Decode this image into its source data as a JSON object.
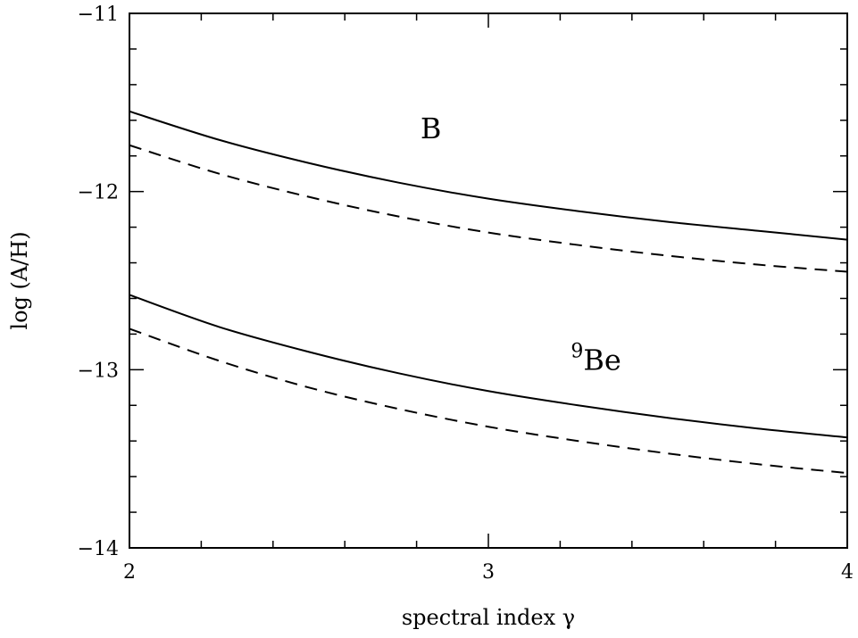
{
  "chart_data": {
    "type": "line",
    "xlabel": "spectral index γ",
    "ylabel": "log (A/H)",
    "xlim": [
      2,
      4
    ],
    "ylim": [
      -14,
      -11
    ],
    "x_ticks": [
      2,
      3,
      4
    ],
    "x_tick_labels": [
      "2",
      "3",
      "4"
    ],
    "x_minor_step": 0.2,
    "y_ticks": [
      -14,
      -13,
      -12,
      -11
    ],
    "y_tick_labels": [
      "−14",
      "−13",
      "−12",
      "−11"
    ],
    "y_minor_step": 0.2,
    "grid": false,
    "legend": "none",
    "x": [
      2.0,
      2.25,
      2.5,
      2.75,
      3.0,
      3.25,
      3.5,
      3.75,
      4.0
    ],
    "series": [
      {
        "label": "B",
        "style": "solid",
        "values": [
          -11.55,
          -11.71,
          -11.84,
          -11.95,
          -12.04,
          -12.11,
          -12.17,
          -12.22,
          -12.27
        ]
      },
      {
        "label": "B",
        "style": "dashed",
        "values": [
          -11.74,
          -11.9,
          -12.03,
          -12.14,
          -12.23,
          -12.3,
          -12.36,
          -12.41,
          -12.45
        ]
      },
      {
        "label": "9Be",
        "style": "solid",
        "values": [
          -12.58,
          -12.76,
          -12.9,
          -13.02,
          -13.12,
          -13.2,
          -13.27,
          -13.33,
          -13.38
        ]
      },
      {
        "label": "9Be",
        "style": "dashed",
        "values": [
          -12.77,
          -12.95,
          -13.1,
          -13.22,
          -13.32,
          -13.4,
          -13.47,
          -13.53,
          -13.58
        ]
      }
    ],
    "annotations": [
      {
        "text": "B",
        "x": 2.84,
        "y": -11.7
      },
      {
        "sup": "9",
        "text": "Be",
        "x": 3.3,
        "y": -13.0
      }
    ]
  }
}
